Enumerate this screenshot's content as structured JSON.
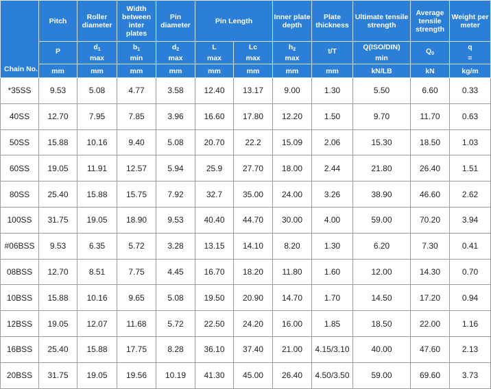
{
  "header": {
    "chain_no": "Chain No.",
    "columns": [
      {
        "title": "Pitch",
        "symbol": "P",
        "sub": "",
        "symbol2": "",
        "unit": "mm"
      },
      {
        "title": "Roller diameter",
        "symbol": "d",
        "sub": "1",
        "symbol2": "max",
        "unit": "mm"
      },
      {
        "title": "Width between inter plates",
        "symbol": "b",
        "sub": "1",
        "symbol2": "min",
        "unit": "mm"
      },
      {
        "title": "Pin diameter",
        "symbol": "d",
        "sub": "2",
        "symbol2": "max",
        "unit": "mm"
      },
      {
        "title": "Pin Length",
        "symbol": "L",
        "sub": "",
        "symbol2": "max",
        "unit": "mm"
      },
      {
        "title": "",
        "symbol": "Lc",
        "sub": "",
        "symbol2": "max",
        "unit": "mm"
      },
      {
        "title": "Inner plate depth",
        "symbol": "h",
        "sub": "2",
        "symbol2": "max",
        "unit": "mm"
      },
      {
        "title": "Plate thickness",
        "symbol": "t/T",
        "sub": "",
        "symbol2": "",
        "unit": "mm"
      },
      {
        "title": "Ultimate tensile strength",
        "symbol": "Q(ISO/DIN)",
        "sub": "",
        "symbol2": "min",
        "unit": "kN/LB"
      },
      {
        "title": "Average tensile strength",
        "symbol": "Q",
        "sub": "0",
        "symbol2": "",
        "unit": "kN"
      },
      {
        "title": "Weight per meter",
        "symbol": "q",
        "sub": "",
        "symbol2": "=",
        "unit": "kg/m"
      }
    ]
  },
  "rows": [
    [
      "*35SS",
      "9.53",
      "5.08",
      "4.77",
      "3.58",
      "12.40",
      "13.17",
      "9.00",
      "1.30",
      "5.50",
      "6.60",
      "0.33"
    ],
    [
      "40SS",
      "12.70",
      "7.95",
      "7.85",
      "3.96",
      "16.60",
      "17.80",
      "12.20",
      "1.50",
      "9.70",
      "11.70",
      "0.63"
    ],
    [
      "50SS",
      "15.88",
      "10.16",
      "9.40",
      "5.08",
      "20.70",
      "22.2",
      "15.09",
      "2.06",
      "15.30",
      "18.50",
      "1.03"
    ],
    [
      "60SS",
      "19.05",
      "11.91",
      "12.57",
      "5.94",
      "25.9",
      "27.70",
      "18.00",
      "2.44",
      "21.80",
      "26.40",
      "1.51"
    ],
    [
      "80SS",
      "25.40",
      "15.88",
      "15.75",
      "7.92",
      "32.7",
      "35.00",
      "24.00",
      "3.26",
      "38.90",
      "46.60",
      "2.62"
    ],
    [
      "100SS",
      "31.75",
      "19.05",
      "18.90",
      "9.53",
      "40.40",
      "44.70",
      "30.00",
      "4.00",
      "59.00",
      "70.20",
      "3.94"
    ],
    [
      "#06BSS",
      "9.53",
      "6.35",
      "5.72",
      "3.28",
      "13.15",
      "14.10",
      "8.20",
      "1.30",
      "6.20",
      "7.30",
      "0.41"
    ],
    [
      "08BSS",
      "12.70",
      "8.51",
      "7.75",
      "4.45",
      "16.70",
      "18.20",
      "11.80",
      "1.60",
      "12.00",
      "14.30",
      "0.70"
    ],
    [
      "10BSS",
      "15.88",
      "10.16",
      "9.65",
      "5.08",
      "19.50",
      "20.90",
      "14.70",
      "1.70",
      "14.50",
      "17.20",
      "0.94"
    ],
    [
      "12BSS",
      "19.05",
      "12.07",
      "11.68",
      "5.72",
      "22.50",
      "24.20",
      "16.00",
      "1.85",
      "18.50",
      "22.00",
      "1.16"
    ],
    [
      "16BSS",
      "25.40",
      "15.88",
      "17.75",
      "8.28",
      "36.10",
      "37.40",
      "21.00",
      "4.15/3.10",
      "40.00",
      "47.60",
      "2.13"
    ],
    [
      "20BSS",
      "31.75",
      "19.05",
      "19.56",
      "10.19",
      "41.30",
      "45.00",
      "26.40",
      "4.50/3.50",
      "59.00",
      "69.60",
      "3.73"
    ]
  ]
}
